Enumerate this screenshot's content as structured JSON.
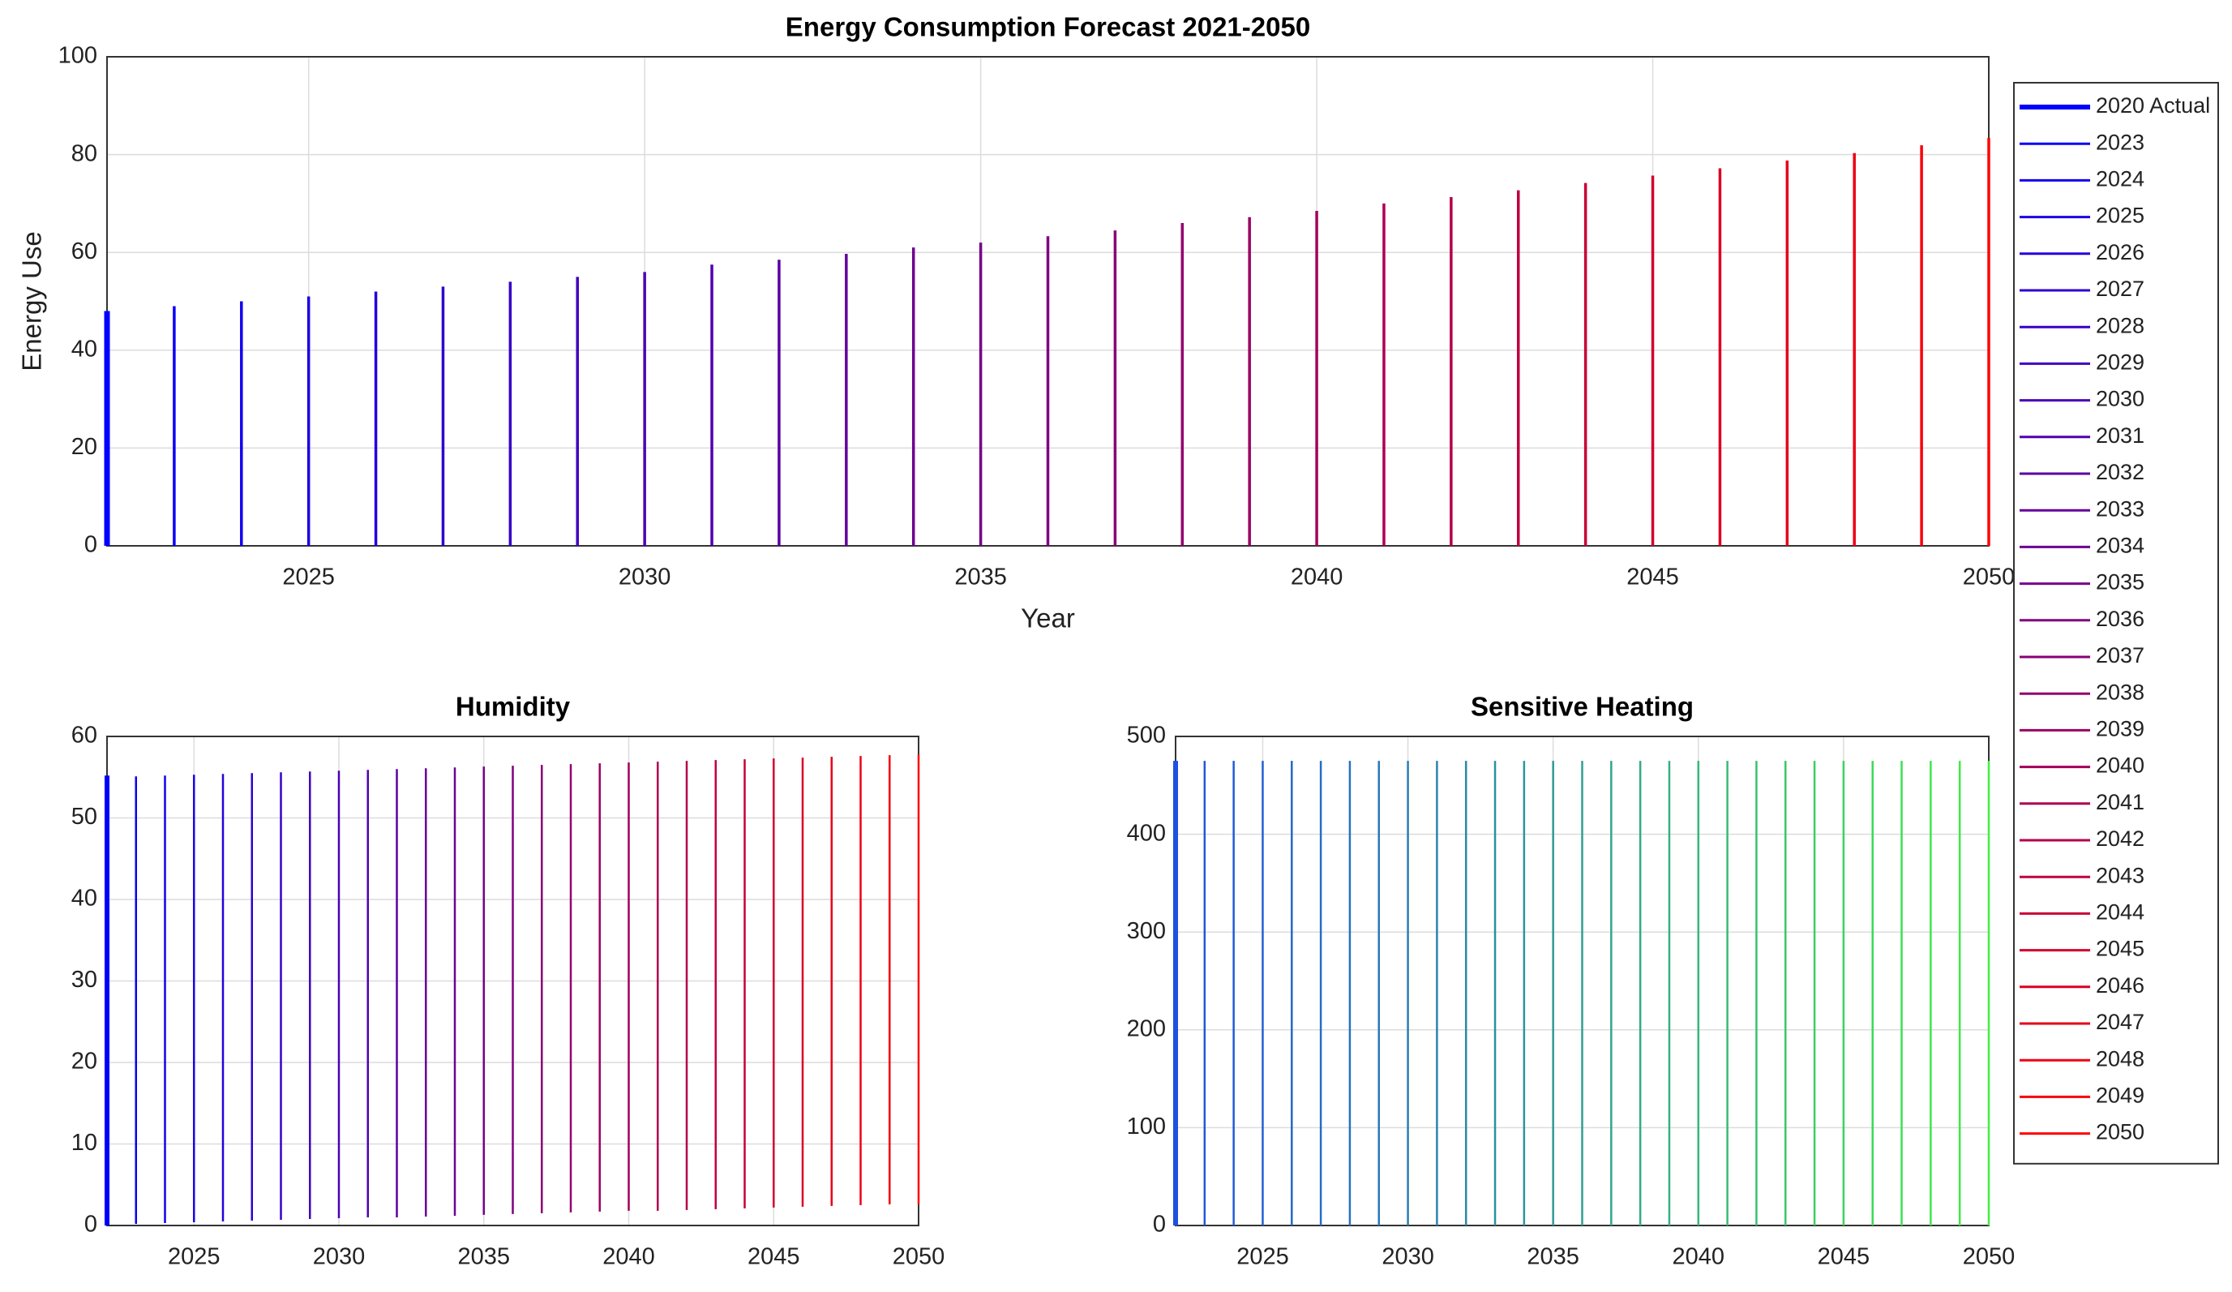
{
  "chart_data": [
    {
      "type": "stem",
      "title": "Energy Consumption Forecast 2021-2050",
      "xlabel": "Year",
      "ylabel": "Energy Use",
      "xlim": [
        2022,
        2050
      ],
      "xticks": [
        2025,
        2030,
        2035,
        2040,
        2045,
        2050
      ],
      "ylim": [
        0,
        100
      ],
      "yticks": [
        0,
        20,
        40,
        60,
        80,
        100
      ],
      "grid": true,
      "legend": "outside-right",
      "series": [
        {
          "name": "2020 Actual",
          "color": "#0000ff",
          "x": [
            2022
          ],
          "values": [
            48
          ]
        },
        {
          "name": "2023",
          "color": "#0900f6",
          "x": [
            2023
          ],
          "values": [
            49
          ]
        },
        {
          "name": "2024",
          "color": "#1200ed",
          "x": [
            2024
          ],
          "values": [
            50
          ]
        },
        {
          "name": "2025",
          "color": "#1b00e4",
          "x": [
            2025
          ],
          "values": [
            51
          ]
        },
        {
          "name": "2026",
          "color": "#2400db",
          "x": [
            2026
          ],
          "values": [
            52
          ]
        },
        {
          "name": "2027",
          "color": "#2e00d1",
          "x": [
            2027
          ],
          "values": [
            53
          ]
        },
        {
          "name": "2028",
          "color": "#3700c8",
          "x": [
            2028
          ],
          "values": [
            54
          ]
        },
        {
          "name": "2029",
          "color": "#4000bf",
          "x": [
            2029
          ],
          "values": [
            55
          ]
        },
        {
          "name": "2030",
          "color": "#4900b6",
          "x": [
            2030
          ],
          "values": [
            56
          ]
        },
        {
          "name": "2031",
          "color": "#5200ad",
          "x": [
            2031
          ],
          "values": [
            57.5
          ]
        },
        {
          "name": "2032",
          "color": "#5b00a4",
          "x": [
            2032
          ],
          "values": [
            58.5
          ]
        },
        {
          "name": "2033",
          "color": "#64009b",
          "x": [
            2033
          ],
          "values": [
            59.7
          ]
        },
        {
          "name": "2034",
          "color": "#6d0092",
          "x": [
            2034
          ],
          "values": [
            61
          ]
        },
        {
          "name": "2035",
          "color": "#760089",
          "x": [
            2035
          ],
          "values": [
            62
          ]
        },
        {
          "name": "2036",
          "color": "#800080",
          "x": [
            2036
          ],
          "values": [
            63.3
          ]
        },
        {
          "name": "2037",
          "color": "#890076",
          "x": [
            2037
          ],
          "values": [
            64.5
          ]
        },
        {
          "name": "2038",
          "color": "#92006d",
          "x": [
            2038
          ],
          "values": [
            66
          ]
        },
        {
          "name": "2039",
          "color": "#9b0064",
          "x": [
            2039
          ],
          "values": [
            67.2
          ]
        },
        {
          "name": "2040",
          "color": "#a4005b",
          "x": [
            2040
          ],
          "values": [
            68.5
          ]
        },
        {
          "name": "2041",
          "color": "#ad0052",
          "x": [
            2041
          ],
          "values": [
            70
          ]
        },
        {
          "name": "2042",
          "color": "#b60049",
          "x": [
            2042
          ],
          "values": [
            71.3
          ]
        },
        {
          "name": "2043",
          "color": "#bf0040",
          "x": [
            2043
          ],
          "values": [
            72.7
          ]
        },
        {
          "name": "2044",
          "color": "#c80037",
          "x": [
            2044
          ],
          "values": [
            74.2
          ]
        },
        {
          "name": "2045",
          "color": "#d1002e",
          "x": [
            2045
          ],
          "values": [
            75.7
          ]
        },
        {
          "name": "2046",
          "color": "#db0024",
          "x": [
            2046
          ],
          "values": [
            77.2
          ]
        },
        {
          "name": "2047",
          "color": "#e4001b",
          "x": [
            2047
          ],
          "values": [
            78.8
          ]
        },
        {
          "name": "2048",
          "color": "#ed0012",
          "x": [
            2048
          ],
          "values": [
            80.3
          ]
        },
        {
          "name": "2049",
          "color": "#f60009",
          "x": [
            2049
          ],
          "values": [
            81.9
          ]
        },
        {
          "name": "2050",
          "color": "#ff0000",
          "x": [
            2050
          ],
          "values": [
            83.4
          ]
        }
      ]
    },
    {
      "type": "stem",
      "title": "Humidity",
      "xlim": [
        2022,
        2050
      ],
      "xticks": [
        2025,
        2030,
        2035,
        2040,
        2045,
        2050
      ],
      "ylim": [
        0,
        60
      ],
      "yticks": [
        0,
        10,
        20,
        30,
        40,
        50,
        60
      ],
      "grid": true,
      "colormap": [
        "#0000ff",
        "#ff0000"
      ],
      "x": [
        2022,
        2023,
        2024,
        2025,
        2026,
        2027,
        2028,
        2029,
        2030,
        2031,
        2032,
        2033,
        2034,
        2035,
        2036,
        2037,
        2038,
        2039,
        2040,
        2041,
        2042,
        2043,
        2044,
        2045,
        2046,
        2047,
        2048,
        2049,
        2050
      ],
      "values": [
        55.2,
        55.1,
        55.2,
        55.3,
        55.4,
        55.5,
        55.6,
        55.7,
        55.8,
        55.9,
        56.0,
        56.1,
        56.2,
        56.3,
        56.4,
        56.5,
        56.6,
        56.7,
        56.8,
        56.9,
        57.0,
        57.1,
        57.2,
        57.3,
        57.4,
        57.5,
        57.6,
        57.7,
        57.8
      ],
      "base": [
        0,
        0.2,
        0.3,
        0.4,
        0.5,
        0.6,
        0.7,
        0.8,
        0.9,
        1.0,
        1.0,
        1.1,
        1.2,
        1.3,
        1.4,
        1.5,
        1.6,
        1.7,
        1.8,
        1.8,
        1.9,
        2.0,
        2.1,
        2.2,
        2.3,
        2.4,
        2.5,
        2.6,
        2.6
      ]
    },
    {
      "type": "stem",
      "title": "Sensitive Heating",
      "xlim": [
        2022,
        2050
      ],
      "xticks": [
        2025,
        2030,
        2035,
        2040,
        2045,
        2050
      ],
      "ylim": [
        0,
        500
      ],
      "yticks": [
        0,
        100,
        200,
        300,
        400,
        500
      ],
      "grid": true,
      "colormap": [
        "#2050e0",
        "#40f040"
      ],
      "x": [
        2022,
        2023,
        2024,
        2025,
        2026,
        2027,
        2028,
        2029,
        2030,
        2031,
        2032,
        2033,
        2034,
        2035,
        2036,
        2037,
        2038,
        2039,
        2040,
        2041,
        2042,
        2043,
        2044,
        2045,
        2046,
        2047,
        2048,
        2049,
        2050
      ],
      "values": [
        475,
        475,
        475,
        475,
        475,
        475,
        475,
        475,
        475,
        475,
        475,
        475,
        475,
        475,
        475,
        475,
        475,
        475,
        475,
        475,
        475,
        475,
        475,
        475,
        475,
        475,
        475,
        475,
        475
      ]
    }
  ]
}
